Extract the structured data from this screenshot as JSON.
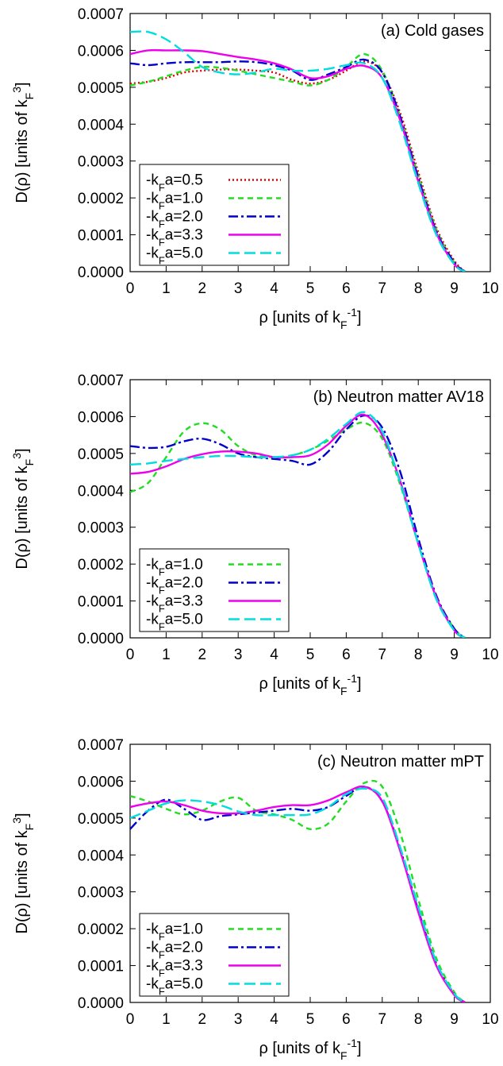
{
  "colors": {
    "k05": "#dd0000",
    "k10": "#22dd22",
    "k20": "#0000cc",
    "k33": "#ee00ee",
    "k50": "#00dddd"
  },
  "chart_data": [
    {
      "type": "line",
      "title": "(a) Cold gases",
      "xlabel": "ρ [units of kF⁻¹]",
      "ylabel": "D(ρ) [units of kF³]",
      "xlim": [
        0,
        10
      ],
      "ylim": [
        0,
        0.0007
      ],
      "x_ticks": [
        "0",
        "1",
        "2",
        "3",
        "4",
        "5",
        "6",
        "7",
        "8",
        "9",
        "10"
      ],
      "y_ticks": [
        "0.0000",
        "0.0001",
        "0.0002",
        "0.0003",
        "0.0004",
        "0.0005",
        "0.0006",
        "0.0007"
      ],
      "grid": false,
      "legend_position": "bottom-left",
      "series": [
        {
          "name": "-kFa=0.5",
          "style": "dotted",
          "color": "#dd0000",
          "x": [
            0,
            0.5,
            1,
            1.5,
            2,
            2.5,
            3,
            3.5,
            4,
            4.5,
            5,
            5.5,
            6,
            6.5,
            7,
            7.5,
            8,
            8.5,
            9,
            9.3
          ],
          "y": [
            0.00051,
            0.000515,
            0.000525,
            0.00054,
            0.000545,
            0.000548,
            0.000548,
            0.000545,
            0.00054,
            0.00052,
            0.00051,
            0.00052,
            0.000545,
            0.00057,
            0.00054,
            0.00043,
            0.00027,
            0.00012,
            3e-05,
            0.0
          ]
        },
        {
          "name": "-kFa=1.0",
          "style": "dashed",
          "color": "#22dd22",
          "x": [
            0,
            0.5,
            1,
            1.5,
            2,
            2.5,
            3,
            3.5,
            4,
            4.5,
            5,
            5.5,
            6,
            6.5,
            7,
            7.5,
            8,
            8.5,
            9,
            9.3
          ],
          "y": [
            0.000505,
            0.000515,
            0.00053,
            0.000545,
            0.000555,
            0.000553,
            0.000545,
            0.000535,
            0.000525,
            0.000515,
            0.000505,
            0.00052,
            0.000555,
            0.00059,
            0.000545,
            0.00042,
            0.00026,
            0.000115,
            2.5e-05,
            0.0
          ]
        },
        {
          "name": "-kFa=2.0",
          "style": "dashdot",
          "color": "#0000cc",
          "x": [
            0,
            0.5,
            1,
            1.5,
            2,
            2.5,
            3,
            3.5,
            4,
            4.5,
            5,
            5.5,
            6,
            6.5,
            7,
            7.5,
            8,
            8.5,
            9,
            9.3
          ],
          "y": [
            0.000565,
            0.00056,
            0.000565,
            0.000568,
            0.000568,
            0.000568,
            0.00057,
            0.000568,
            0.00056,
            0.000545,
            0.00052,
            0.000535,
            0.000555,
            0.000575,
            0.00054,
            0.00042,
            0.000255,
            0.00011,
            2.5e-05,
            0.0
          ]
        },
        {
          "name": "-kFa=3.3",
          "style": "solid",
          "color": "#ee00ee",
          "x": [
            0,
            0.5,
            1,
            1.5,
            2,
            2.5,
            3,
            3.5,
            4,
            4.5,
            5,
            5.5,
            6,
            6.5,
            7,
            7.5,
            8,
            8.5,
            9,
            9.3
          ],
          "y": [
            0.00059,
            0.0006,
            0.0006,
            0.0006,
            0.000598,
            0.00059,
            0.000582,
            0.000575,
            0.000565,
            0.000548,
            0.000525,
            0.00053,
            0.00055,
            0.000558,
            0.000525,
            0.00041,
            0.000245,
            0.000105,
            2e-05,
            0.0
          ]
        },
        {
          "name": "-kFa=5.0",
          "style": "longdash",
          "color": "#00dddd",
          "x": [
            0,
            0.5,
            1,
            1.5,
            2,
            2.5,
            3,
            3.5,
            4,
            4.5,
            5,
            5.5,
            6,
            6.5,
            7,
            7.5,
            8,
            8.5,
            9,
            9.3
          ],
          "y": [
            0.00065,
            0.00065,
            0.00063,
            0.000595,
            0.000555,
            0.00054,
            0.000535,
            0.00054,
            0.00055,
            0.000545,
            0.000545,
            0.00055,
            0.00056,
            0.000565,
            0.000525,
            0.0004,
            0.00024,
            0.0001,
            2e-05,
            0.0
          ]
        }
      ]
    },
    {
      "type": "line",
      "title": "(b) Neutron matter AV18",
      "xlabel": "ρ [units of kF⁻¹]",
      "ylabel": "D(ρ) [units of kF³]",
      "xlim": [
        0,
        10
      ],
      "ylim": [
        0,
        0.0007
      ],
      "x_ticks": [
        "0",
        "1",
        "2",
        "3",
        "4",
        "5",
        "6",
        "7",
        "8",
        "9",
        "10"
      ],
      "y_ticks": [
        "0.0000",
        "0.0001",
        "0.0002",
        "0.0003",
        "0.0004",
        "0.0005",
        "0.0006",
        "0.0007"
      ],
      "grid": false,
      "legend_position": "bottom-left",
      "series": [
        {
          "name": "-kFa=1.0",
          "style": "dashed",
          "color": "#22dd22",
          "x": [
            0,
            0.5,
            1,
            1.5,
            2,
            2.5,
            3,
            3.5,
            4,
            4.5,
            5,
            5.5,
            6,
            6.5,
            7,
            7.5,
            8,
            8.5,
            9,
            9.3
          ],
          "y": [
            0.000395,
            0.00042,
            0.00049,
            0.00056,
            0.000582,
            0.000565,
            0.00052,
            0.000495,
            0.00049,
            0.000495,
            0.00051,
            0.000535,
            0.000565,
            0.000583,
            0.00054,
            0.000415,
            0.000255,
            0.00011,
            2.5e-05,
            0.0
          ]
        },
        {
          "name": "-kFa=2.0",
          "style": "dashdot",
          "color": "#0000cc",
          "x": [
            0,
            0.5,
            1,
            1.5,
            2,
            2.5,
            3,
            3.5,
            4,
            4.5,
            5,
            5.5,
            6,
            6.5,
            7,
            7.5,
            8,
            8.5,
            9,
            9.3
          ],
          "y": [
            0.00052,
            0.000515,
            0.000518,
            0.000533,
            0.00054,
            0.000525,
            0.0005,
            0.00049,
            0.000485,
            0.00048,
            0.00047,
            0.000505,
            0.000565,
            0.000603,
            0.00057,
            0.00045,
            0.00027,
            0.000115,
            2.5e-05,
            0.0
          ]
        },
        {
          "name": "-kFa=3.3",
          "style": "solid",
          "color": "#ee00ee",
          "x": [
            0,
            0.5,
            1,
            1.5,
            2,
            2.5,
            3,
            3.5,
            4,
            4.5,
            5,
            5.5,
            6,
            6.5,
            7,
            7.5,
            8,
            8.5,
            9,
            9.3
          ],
          "y": [
            0.000445,
            0.00045,
            0.000465,
            0.000485,
            0.000498,
            0.000505,
            0.000505,
            0.0005,
            0.00049,
            0.00049,
            0.000495,
            0.000525,
            0.000575,
            0.000605,
            0.00055,
            0.000425,
            0.000255,
            0.00011,
            2e-05,
            0.0
          ]
        },
        {
          "name": "-kFa=5.0",
          "style": "longdash",
          "color": "#00dddd",
          "x": [
            0,
            0.5,
            1,
            1.5,
            2,
            2.5,
            3,
            3.5,
            4,
            4.5,
            5,
            5.5,
            6,
            6.5,
            7,
            7.5,
            8,
            8.5,
            9,
            9.3
          ],
          "y": [
            0.00047,
            0.000473,
            0.00048,
            0.000485,
            0.00049,
            0.000493,
            0.000493,
            0.00049,
            0.00049,
            0.000495,
            0.00051,
            0.00054,
            0.00058,
            0.000612,
            0.00056,
            0.00042,
            0.000255,
            0.000105,
            2e-05,
            0.0
          ]
        }
      ]
    },
    {
      "type": "line",
      "title": "(c) Neutron matter mPT",
      "xlabel": "ρ [units of kF⁻¹]",
      "ylabel": "D(ρ) [units of kF³]",
      "xlim": [
        0,
        10
      ],
      "ylim": [
        0,
        0.0007
      ],
      "x_ticks": [
        "0",
        "1",
        "2",
        "3",
        "4",
        "5",
        "6",
        "7",
        "8",
        "9",
        "10"
      ],
      "y_ticks": [
        "0.0000",
        "0.0001",
        "0.0002",
        "0.0003",
        "0.0004",
        "0.0005",
        "0.0006",
        "0.0007"
      ],
      "grid": false,
      "legend_position": "bottom-left",
      "series": [
        {
          "name": "-kFa=1.0",
          "style": "dashed",
          "color": "#22dd22",
          "x": [
            0,
            0.5,
            1,
            1.5,
            2,
            2.5,
            3,
            3.5,
            4,
            4.5,
            5,
            5.5,
            6,
            6.5,
            7,
            7.5,
            8,
            8.5,
            9,
            9.3
          ],
          "y": [
            0.00056,
            0.000545,
            0.000525,
            0.00051,
            0.00052,
            0.000545,
            0.000555,
            0.00052,
            0.00051,
            0.000495,
            0.00047,
            0.000485,
            0.000545,
            0.000595,
            0.000585,
            0.00046,
            0.00028,
            0.00012,
            2.8e-05,
            0.0
          ]
        },
        {
          "name": "-kFa=2.0",
          "style": "dashdot",
          "color": "#0000cc",
          "x": [
            0,
            0.5,
            1,
            1.5,
            2,
            2.5,
            3,
            3.5,
            4,
            4.5,
            5,
            5.5,
            6,
            6.5,
            7,
            7.5,
            8,
            8.5,
            9,
            9.3
          ],
          "y": [
            0.00047,
            0.00052,
            0.00055,
            0.000525,
            0.000495,
            0.000505,
            0.00051,
            0.000515,
            0.00052,
            0.000525,
            0.00052,
            0.00053,
            0.00056,
            0.000585,
            0.000545,
            0.000415,
            0.00025,
            0.000105,
            2.2e-05,
            0.0
          ]
        },
        {
          "name": "-kFa=3.3",
          "style": "solid",
          "color": "#ee00ee",
          "x": [
            0,
            0.5,
            1,
            1.5,
            2,
            2.5,
            3,
            3.5,
            4,
            4.5,
            5,
            5.5,
            6,
            6.5,
            7,
            7.5,
            8,
            8.5,
            9,
            9.3
          ],
          "y": [
            0.00053,
            0.00054,
            0.000545,
            0.000535,
            0.00052,
            0.000513,
            0.000513,
            0.00052,
            0.00053,
            0.000535,
            0.000535,
            0.000548,
            0.00057,
            0.000585,
            0.000545,
            0.00041,
            0.000245,
            0.0001,
            2e-05,
            0.0
          ]
        },
        {
          "name": "-kFa=5.0",
          "style": "longdash",
          "color": "#00dddd",
          "x": [
            0,
            0.5,
            1,
            1.5,
            2,
            2.5,
            3,
            3.5,
            4,
            4.5,
            5,
            5.5,
            6,
            6.5,
            7,
            7.5,
            8,
            8.5,
            9,
            9.3
          ],
          "y": [
            0.0005,
            0.00052,
            0.00054,
            0.000548,
            0.000545,
            0.000535,
            0.000518,
            0.000508,
            0.000508,
            0.000508,
            0.00051,
            0.00053,
            0.000565,
            0.00058,
            0.000555,
            0.00042,
            0.00026,
            0.00011,
            2.4e-05,
            0.0
          ]
        }
      ]
    }
  ]
}
